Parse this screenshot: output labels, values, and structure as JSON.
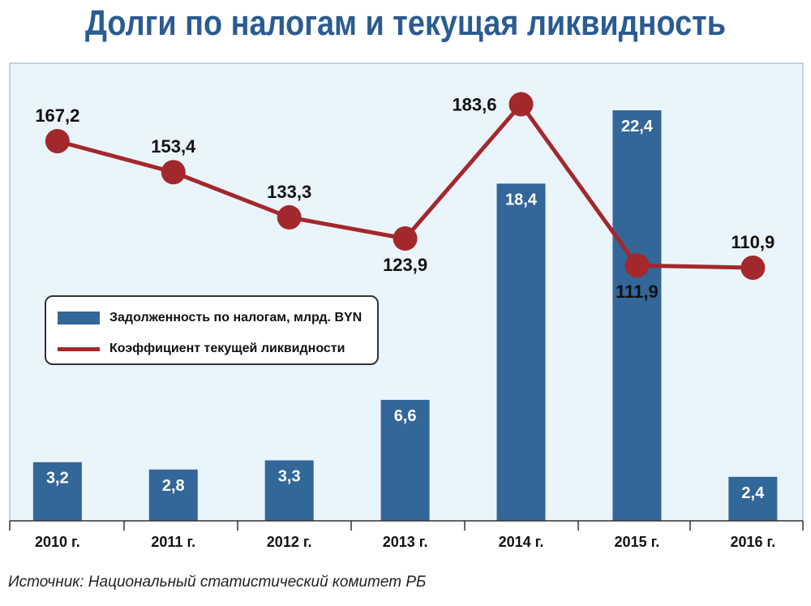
{
  "title": "Долги по налогам и текущая ликвидность",
  "source": "Источник: Национальный статистический комитет РБ",
  "colors": {
    "bar": "#336699",
    "line": "#a3282b",
    "title": "#2b5b91",
    "plot_background": "#eaf4fb"
  },
  "legend": {
    "bar_label": "Задолженность по налогам, млрд. BYN",
    "line_label": "Коэффициент текущей ликвидности"
  },
  "chart_data": {
    "type": "bar",
    "title": "Долги по налогам и текущая ликвидность",
    "categories": [
      "2010 г.",
      "2011 г.",
      "2012 г.",
      "2013 г.",
      "2014 г.",
      "2015 г.",
      "2016 г."
    ],
    "series": [
      {
        "name": "Задолженность по налогам, млрд. BYN",
        "type": "bar",
        "values": [
          3.2,
          2.8,
          3.3,
          6.6,
          18.4,
          22.4,
          2.4
        ],
        "labels": [
          "3,2",
          "2,8",
          "3,3",
          "6,6",
          "18,4",
          "22,4",
          "2,4"
        ]
      },
      {
        "name": "Коэффициент текущей ликвидности",
        "type": "line",
        "values": [
          167.2,
          153.4,
          133.3,
          123.9,
          183.6,
          111.9,
          110.9
        ],
        "labels": [
          "167,2",
          "153,4",
          "133,3",
          "123,9",
          "183,6",
          "111,9",
          "110,9"
        ],
        "label_positions": [
          "above",
          "above",
          "above",
          "below",
          "left",
          "below",
          "above"
        ]
      }
    ],
    "legend_position": "middle-left",
    "grid": false,
    "bar_axis_range": [
      0,
      22.4
    ],
    "line_axis_range": [
      0,
      183.6
    ]
  }
}
